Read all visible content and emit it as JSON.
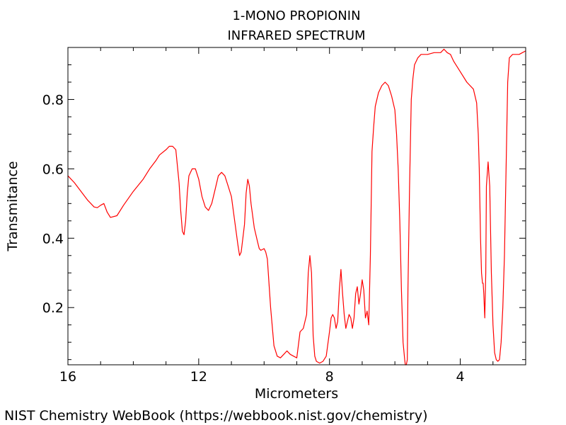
{
  "chart_data": {
    "type": "line",
    "title": "1-MONO PROPIONIN",
    "subtitle": "INFRARED SPECTRUM",
    "xlabel": "Micrometers",
    "ylabel": "Transmitance",
    "xlim": [
      16,
      2.0
    ],
    "ylim": [
      0.035,
      0.95
    ],
    "x_ticks": [
      16,
      12,
      8,
      4
    ],
    "y_ticks": [
      0.2,
      0.4,
      0.6,
      0.8
    ],
    "x_tick_labels": [
      "16",
      "12",
      "8",
      "4"
    ],
    "y_tick_labels": [
      "0.2",
      "0.4",
      "0.6",
      "0.8"
    ],
    "grid": false,
    "line_color": "#ff0000",
    "series": [
      {
        "x": [
          16.0,
          15.8,
          15.6,
          15.4,
          15.2,
          15.1,
          15.0,
          14.9,
          14.8,
          14.7,
          14.5,
          14.3,
          14.0,
          13.7,
          13.5,
          13.3,
          13.2,
          13.0,
          12.9,
          12.8,
          12.7,
          12.6,
          12.55,
          12.5,
          12.45,
          12.4,
          12.35,
          12.3,
          12.2,
          12.1,
          12.0,
          11.9,
          11.8,
          11.7,
          11.6,
          11.5,
          11.4,
          11.3,
          11.2,
          11.1,
          11.0,
          10.9,
          10.8,
          10.75,
          10.7,
          10.6,
          10.55,
          10.5,
          10.45,
          10.4,
          10.3,
          10.2,
          10.15,
          10.1,
          10.0,
          9.95,
          9.9,
          9.8,
          9.7,
          9.6,
          9.5,
          9.4,
          9.3,
          9.2,
          9.1,
          9.0,
          8.9,
          8.8,
          8.7,
          8.65,
          8.6,
          8.55,
          8.5,
          8.45,
          8.4,
          8.3,
          8.2,
          8.1,
          8.0,
          7.95,
          7.9,
          7.85,
          7.8,
          7.75,
          7.7,
          7.65,
          7.6,
          7.55,
          7.5,
          7.45,
          7.4,
          7.35,
          7.3,
          7.25,
          7.2,
          7.15,
          7.1,
          7.05,
          7.0,
          6.95,
          6.9,
          6.85,
          6.8,
          6.75,
          6.7,
          6.65,
          6.6,
          6.5,
          6.4,
          6.3,
          6.2,
          6.1,
          6.0,
          5.95,
          5.9,
          5.85,
          5.8,
          5.75,
          5.7,
          5.68,
          5.65,
          5.62,
          5.6,
          5.55,
          5.5,
          5.45,
          5.4,
          5.3,
          5.2,
          5.0,
          4.8,
          4.6,
          4.5,
          4.4,
          4.3,
          4.2,
          4.0,
          3.8,
          3.6,
          3.5,
          3.45,
          3.42,
          3.4,
          3.38,
          3.35,
          3.32,
          3.3,
          3.28,
          3.25,
          3.22,
          3.2,
          3.15,
          3.1,
          3.05,
          3.0,
          2.95,
          2.9,
          2.85,
          2.8,
          2.75,
          2.7,
          2.65,
          2.6,
          2.55,
          2.5,
          2.4,
          2.3,
          2.2,
          2.1,
          2.0
        ],
        "y": [
          0.58,
          0.56,
          0.535,
          0.51,
          0.49,
          0.488,
          0.495,
          0.5,
          0.475,
          0.46,
          0.465,
          0.495,
          0.535,
          0.57,
          0.6,
          0.625,
          0.64,
          0.655,
          0.665,
          0.665,
          0.655,
          0.56,
          0.48,
          0.42,
          0.41,
          0.45,
          0.53,
          0.58,
          0.6,
          0.6,
          0.57,
          0.52,
          0.49,
          0.48,
          0.5,
          0.54,
          0.58,
          0.59,
          0.58,
          0.55,
          0.52,
          0.45,
          0.38,
          0.35,
          0.36,
          0.44,
          0.53,
          0.57,
          0.55,
          0.5,
          0.43,
          0.39,
          0.37,
          0.365,
          0.37,
          0.36,
          0.34,
          0.2,
          0.09,
          0.06,
          0.055,
          0.065,
          0.075,
          0.065,
          0.06,
          0.055,
          0.13,
          0.14,
          0.18,
          0.3,
          0.35,
          0.3,
          0.12,
          0.06,
          0.045,
          0.04,
          0.045,
          0.06,
          0.13,
          0.17,
          0.18,
          0.17,
          0.14,
          0.16,
          0.25,
          0.31,
          0.24,
          0.18,
          0.14,
          0.16,
          0.18,
          0.17,
          0.14,
          0.17,
          0.24,
          0.26,
          0.21,
          0.24,
          0.28,
          0.25,
          0.17,
          0.19,
          0.15,
          0.35,
          0.65,
          0.72,
          0.78,
          0.82,
          0.84,
          0.85,
          0.84,
          0.81,
          0.77,
          0.7,
          0.6,
          0.45,
          0.25,
          0.1,
          0.05,
          0.035,
          0.035,
          0.05,
          0.25,
          0.55,
          0.8,
          0.86,
          0.9,
          0.92,
          0.93,
          0.93,
          0.935,
          0.935,
          0.945,
          0.935,
          0.93,
          0.91,
          0.88,
          0.85,
          0.83,
          0.79,
          0.7,
          0.6,
          0.5,
          0.4,
          0.3,
          0.27,
          0.27,
          0.24,
          0.17,
          0.3,
          0.55,
          0.62,
          0.55,
          0.3,
          0.15,
          0.07,
          0.05,
          0.045,
          0.05,
          0.1,
          0.2,
          0.35,
          0.6,
          0.85,
          0.92,
          0.93,
          0.93,
          0.93,
          0.935,
          0.94
        ]
      }
    ]
  },
  "footer": {
    "source_text": "NIST Chemistry WebBook (https://webbook.nist.gov/chemistry)"
  }
}
